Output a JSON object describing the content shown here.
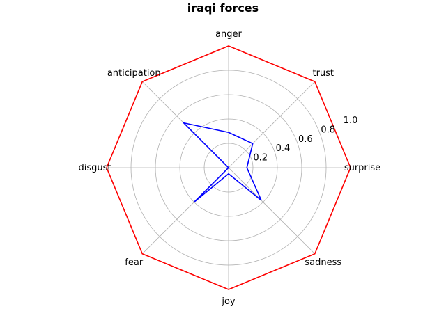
{
  "chart_data": {
    "type": "radar",
    "title": "iraqi forces",
    "categories": [
      "surprise",
      "trust",
      "anger",
      "anticipation",
      "disgust",
      "fear",
      "joy",
      "sadness"
    ],
    "rlim": [
      0,
      1.0
    ],
    "rticks": [
      0.2,
      0.4,
      0.6,
      0.8,
      1.0
    ],
    "rtick_labels": [
      "0.2",
      "0.4",
      "0.6",
      "0.8",
      "1.0"
    ],
    "grid": true,
    "series": [
      {
        "values": [
          1.0,
          1.0,
          1.0,
          1.0,
          1.0,
          1.0,
          1.0,
          1.0
        ],
        "color": "#ff0000"
      },
      {
        "values": [
          0.15,
          0.28,
          0.29,
          0.52,
          0.0,
          0.4,
          0.05,
          0.38
        ],
        "color": "#0000ff"
      }
    ]
  }
}
